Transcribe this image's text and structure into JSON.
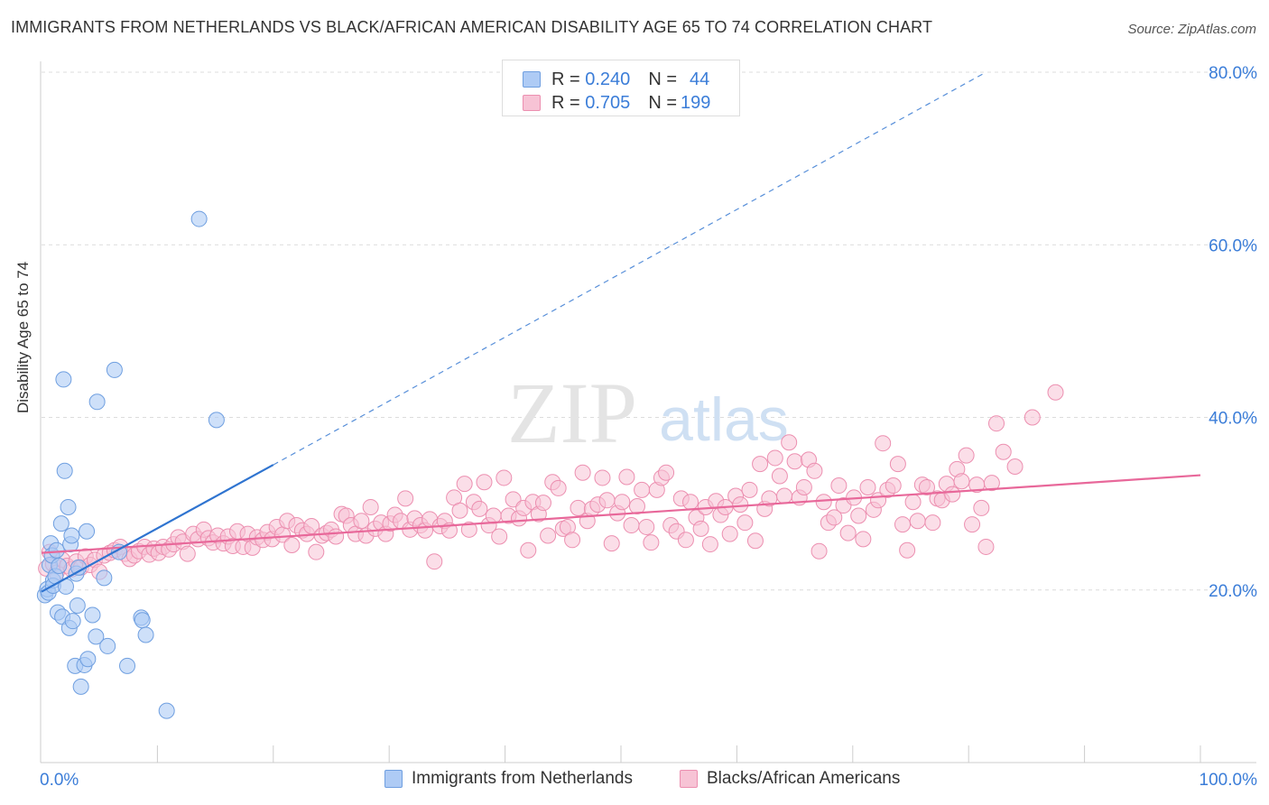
{
  "title": "IMMIGRANTS FROM NETHERLANDS VS BLACK/AFRICAN AMERICAN DISABILITY AGE 65 TO 74 CORRELATION CHART",
  "source": "Source: ZipAtlas.com",
  "watermark": {
    "zip": "ZIP",
    "atlas": "atlas"
  },
  "legend_top": {
    "rows": [
      {
        "r_label": "R =",
        "r_value": "0.240",
        "n_label": "N =",
        "n_value": "44"
      },
      {
        "r_label": "R =",
        "r_value": "0.705",
        "n_label": "N =",
        "n_value": "199"
      }
    ]
  },
  "legend_bottom": [
    "Immigrants from Netherlands",
    "Blacks/African Americans"
  ],
  "colors": {
    "blue_fill": "#aecbf5",
    "blue_stroke": "#6f9fe0",
    "blue_line": "#2f74d0",
    "pink_fill": "#f7c3d5",
    "pink_stroke": "#ec8fb0",
    "pink_line": "#e8689a",
    "axis_text": "#3b7dd8"
  },
  "chart_data": {
    "type": "scatter",
    "title": "IMMIGRANTS FROM NETHERLANDS VS BLACK/AFRICAN AMERICAN DISABILITY AGE 65 TO 74 CORRELATION CHART",
    "xlabel": "",
    "ylabel": "Disability Age 65 to 74",
    "xlim": [
      0,
      100
    ],
    "ylim": [
      0,
      80
    ],
    "x_tick_labels": [
      "0.0%",
      "100.0%"
    ],
    "y_tick_labels": [
      "20.0%",
      "40.0%",
      "60.0%",
      "80.0%"
    ],
    "y_ticks": [
      20,
      40,
      60,
      80
    ],
    "grid": true,
    "series": [
      {
        "name": "Immigrants from Netherlands",
        "r": 0.24,
        "n": 44,
        "trend": {
          "x0": 0,
          "y0": 19.8,
          "x1": 20,
          "y1": 34.5,
          "dashed_to_x": 81.5,
          "dashed_to_y": 80
        },
        "points": [
          [
            0.3,
            19.4
          ],
          [
            0.5,
            20.1
          ],
          [
            0.6,
            19.7
          ],
          [
            0.7,
            22.9
          ],
          [
            0.8,
            25.4
          ],
          [
            0.9,
            24.0
          ],
          [
            1.0,
            21.1
          ],
          [
            1.0,
            20.5
          ],
          [
            1.2,
            21.6
          ],
          [
            1.3,
            24.6
          ],
          [
            1.4,
            17.4
          ],
          [
            1.5,
            22.8
          ],
          [
            1.7,
            27.7
          ],
          [
            1.8,
            16.9
          ],
          [
            1.9,
            44.4
          ],
          [
            2.0,
            33.8
          ],
          [
            2.1,
            20.4
          ],
          [
            2.3,
            29.6
          ],
          [
            2.4,
            15.6
          ],
          [
            2.5,
            25.3
          ],
          [
            2.6,
            26.3
          ],
          [
            2.7,
            16.4
          ],
          [
            2.9,
            11.2
          ],
          [
            3.0,
            21.9
          ],
          [
            3.1,
            18.2
          ],
          [
            3.2,
            22.6
          ],
          [
            3.4,
            8.8
          ],
          [
            3.7,
            11.3
          ],
          [
            3.9,
            26.8
          ],
          [
            4.0,
            12.0
          ],
          [
            4.4,
            17.1
          ],
          [
            4.7,
            14.6
          ],
          [
            4.8,
            41.8
          ],
          [
            5.4,
            21.4
          ],
          [
            5.7,
            13.5
          ],
          [
            6.3,
            45.5
          ],
          [
            6.7,
            24.4
          ],
          [
            7.4,
            11.2
          ],
          [
            8.6,
            16.8
          ],
          [
            8.7,
            16.5
          ],
          [
            9.0,
            14.8
          ],
          [
            10.8,
            6.0
          ],
          [
            13.6,
            63.0
          ],
          [
            15.1,
            39.7
          ]
        ]
      },
      {
        "name": "Blacks/African Americans",
        "r": 0.705,
        "n": 199,
        "trend": {
          "x0": 0,
          "y0": 24.3,
          "x1": 100,
          "y1": 33.3
        },
        "points": [
          [
            0.4,
            22.5
          ],
          [
            0.7,
            24.4
          ],
          [
            1.0,
            23.0
          ],
          [
            1.3,
            22.0
          ],
          [
            1.8,
            23.5
          ],
          [
            2.2,
            22.8
          ],
          [
            2.6,
            22.4
          ],
          [
            3.0,
            23.3
          ],
          [
            3.4,
            22.6
          ],
          [
            3.8,
            23.9
          ],
          [
            4.2,
            22.9
          ],
          [
            4.6,
            23.5
          ],
          [
            5.0,
            22.1
          ],
          [
            5.4,
            24.0
          ],
          [
            5.9,
            24.3
          ],
          [
            6.3,
            24.6
          ],
          [
            6.8,
            25.0
          ],
          [
            7.2,
            24.2
          ],
          [
            7.6,
            23.6
          ],
          [
            8.0,
            24.0
          ],
          [
            8.4,
            24.5
          ],
          [
            8.9,
            25.0
          ],
          [
            9.3,
            24.1
          ],
          [
            9.7,
            24.8
          ],
          [
            10.1,
            24.3
          ],
          [
            10.5,
            25.0
          ],
          [
            11.0,
            24.7
          ],
          [
            11.4,
            25.3
          ],
          [
            11.8,
            26.1
          ],
          [
            12.2,
            25.6
          ],
          [
            12.6,
            24.2
          ],
          [
            13.1,
            26.5
          ],
          [
            13.5,
            25.9
          ],
          [
            14.0,
            27.0
          ],
          [
            14.4,
            26.0
          ],
          [
            14.8,
            25.5
          ],
          [
            15.2,
            26.3
          ],
          [
            15.7,
            25.4
          ],
          [
            16.1,
            26.2
          ],
          [
            16.5,
            25.1
          ],
          [
            16.9,
            26.8
          ],
          [
            17.4,
            25.0
          ],
          [
            17.8,
            26.5
          ],
          [
            18.2,
            24.9
          ],
          [
            18.6,
            26.1
          ],
          [
            19.1,
            25.8
          ],
          [
            19.5,
            26.7
          ],
          [
            19.9,
            25.9
          ],
          [
            20.3,
            27.3
          ],
          [
            20.8,
            26.4
          ],
          [
            21.2,
            28.0
          ],
          [
            21.6,
            25.2
          ],
          [
            22.0,
            27.5
          ],
          [
            22.5,
            26.9
          ],
          [
            22.9,
            26.5
          ],
          [
            23.3,
            27.4
          ],
          [
            23.7,
            24.4
          ],
          [
            24.2,
            26.3
          ],
          [
            24.6,
            26.6
          ],
          [
            25.0,
            27.0
          ],
          [
            25.4,
            26.2
          ],
          [
            25.9,
            28.8
          ],
          [
            26.3,
            28.6
          ],
          [
            26.7,
            27.5
          ],
          [
            27.1,
            26.5
          ],
          [
            27.6,
            28.0
          ],
          [
            28.0,
            26.3
          ],
          [
            28.4,
            29.6
          ],
          [
            28.8,
            27.1
          ],
          [
            29.3,
            27.8
          ],
          [
            29.7,
            26.5
          ],
          [
            30.1,
            27.7
          ],
          [
            30.5,
            28.7
          ],
          [
            31.0,
            28.0
          ],
          [
            31.4,
            30.6
          ],
          [
            31.8,
            27.0
          ],
          [
            32.2,
            28.3
          ],
          [
            32.7,
            27.5
          ],
          [
            33.1,
            26.9
          ],
          [
            33.5,
            28.2
          ],
          [
            33.9,
            23.3
          ],
          [
            34.4,
            27.4
          ],
          [
            34.8,
            28.0
          ],
          [
            35.2,
            26.9
          ],
          [
            35.6,
            30.7
          ],
          [
            36.1,
            29.2
          ],
          [
            36.5,
            32.3
          ],
          [
            36.9,
            27.0
          ],
          [
            37.3,
            30.2
          ],
          [
            37.8,
            29.4
          ],
          [
            38.2,
            32.5
          ],
          [
            38.6,
            27.5
          ],
          [
            39.0,
            28.6
          ],
          [
            39.5,
            26.2
          ],
          [
            39.9,
            33.0
          ],
          [
            40.3,
            28.6
          ],
          [
            40.7,
            30.5
          ],
          [
            41.2,
            28.3
          ],
          [
            41.6,
            29.5
          ],
          [
            42.0,
            24.6
          ],
          [
            42.4,
            30.2
          ],
          [
            42.9,
            28.8
          ],
          [
            43.3,
            30.1
          ],
          [
            43.7,
            26.3
          ],
          [
            44.1,
            32.5
          ],
          [
            44.6,
            31.8
          ],
          [
            45.0,
            27.1
          ],
          [
            45.4,
            27.3
          ],
          [
            45.8,
            25.8
          ],
          [
            46.3,
            29.5
          ],
          [
            46.7,
            33.6
          ],
          [
            47.1,
            28.0
          ],
          [
            47.5,
            29.4
          ],
          [
            48.0,
            29.9
          ],
          [
            48.4,
            33.0
          ],
          [
            48.8,
            30.4
          ],
          [
            49.2,
            25.4
          ],
          [
            49.7,
            28.9
          ],
          [
            50.1,
            30.2
          ],
          [
            50.5,
            33.1
          ],
          [
            50.9,
            27.5
          ],
          [
            51.4,
            29.7
          ],
          [
            51.8,
            31.6
          ],
          [
            52.2,
            27.3
          ],
          [
            52.6,
            25.5
          ],
          [
            53.1,
            31.6
          ],
          [
            53.5,
            33.0
          ],
          [
            53.9,
            33.6
          ],
          [
            54.3,
            27.5
          ],
          [
            54.8,
            26.8
          ],
          [
            55.2,
            30.6
          ],
          [
            55.6,
            25.8
          ],
          [
            56.0,
            30.2
          ],
          [
            56.5,
            28.4
          ],
          [
            56.9,
            27.1
          ],
          [
            57.3,
            29.6
          ],
          [
            57.7,
            25.3
          ],
          [
            58.2,
            30.3
          ],
          [
            58.6,
            28.7
          ],
          [
            59.0,
            29.6
          ],
          [
            59.4,
            26.5
          ],
          [
            59.9,
            30.9
          ],
          [
            60.3,
            29.9
          ],
          [
            60.7,
            27.8
          ],
          [
            61.1,
            31.6
          ],
          [
            61.6,
            25.7
          ],
          [
            62.0,
            34.6
          ],
          [
            62.4,
            29.4
          ],
          [
            62.8,
            30.6
          ],
          [
            63.3,
            35.3
          ],
          [
            63.7,
            33.2
          ],
          [
            64.1,
            30.9
          ],
          [
            64.5,
            37.1
          ],
          [
            65.0,
            34.9
          ],
          [
            65.4,
            30.7
          ],
          [
            65.8,
            31.9
          ],
          [
            66.2,
            35.1
          ],
          [
            66.7,
            33.8
          ],
          [
            67.1,
            24.5
          ],
          [
            67.5,
            30.2
          ],
          [
            67.9,
            27.8
          ],
          [
            68.4,
            28.4
          ],
          [
            68.8,
            32.1
          ],
          [
            69.2,
            29.8
          ],
          [
            69.6,
            26.6
          ],
          [
            70.1,
            30.7
          ],
          [
            70.5,
            28.6
          ],
          [
            70.9,
            25.9
          ],
          [
            71.3,
            31.9
          ],
          [
            71.8,
            29.3
          ],
          [
            72.2,
            30.4
          ],
          [
            72.6,
            37.0
          ],
          [
            73.0,
            31.6
          ],
          [
            73.5,
            32.1
          ],
          [
            73.9,
            34.6
          ],
          [
            74.3,
            27.6
          ],
          [
            74.7,
            24.6
          ],
          [
            75.2,
            30.2
          ],
          [
            75.6,
            28.0
          ],
          [
            76.0,
            32.2
          ],
          [
            76.4,
            31.9
          ],
          [
            76.9,
            27.8
          ],
          [
            77.3,
            30.6
          ],
          [
            77.7,
            30.4
          ],
          [
            78.1,
            32.3
          ],
          [
            78.6,
            31.1
          ],
          [
            79.0,
            34.0
          ],
          [
            79.4,
            32.6
          ],
          [
            79.8,
            35.6
          ],
          [
            80.3,
            27.6
          ],
          [
            80.7,
            32.2
          ],
          [
            81.1,
            29.5
          ],
          [
            81.5,
            25.0
          ],
          [
            82.0,
            32.4
          ],
          [
            82.4,
            39.3
          ],
          [
            83.0,
            36.0
          ],
          [
            84.0,
            34.3
          ],
          [
            85.5,
            40.0
          ],
          [
            87.5,
            42.9
          ]
        ]
      }
    ]
  }
}
